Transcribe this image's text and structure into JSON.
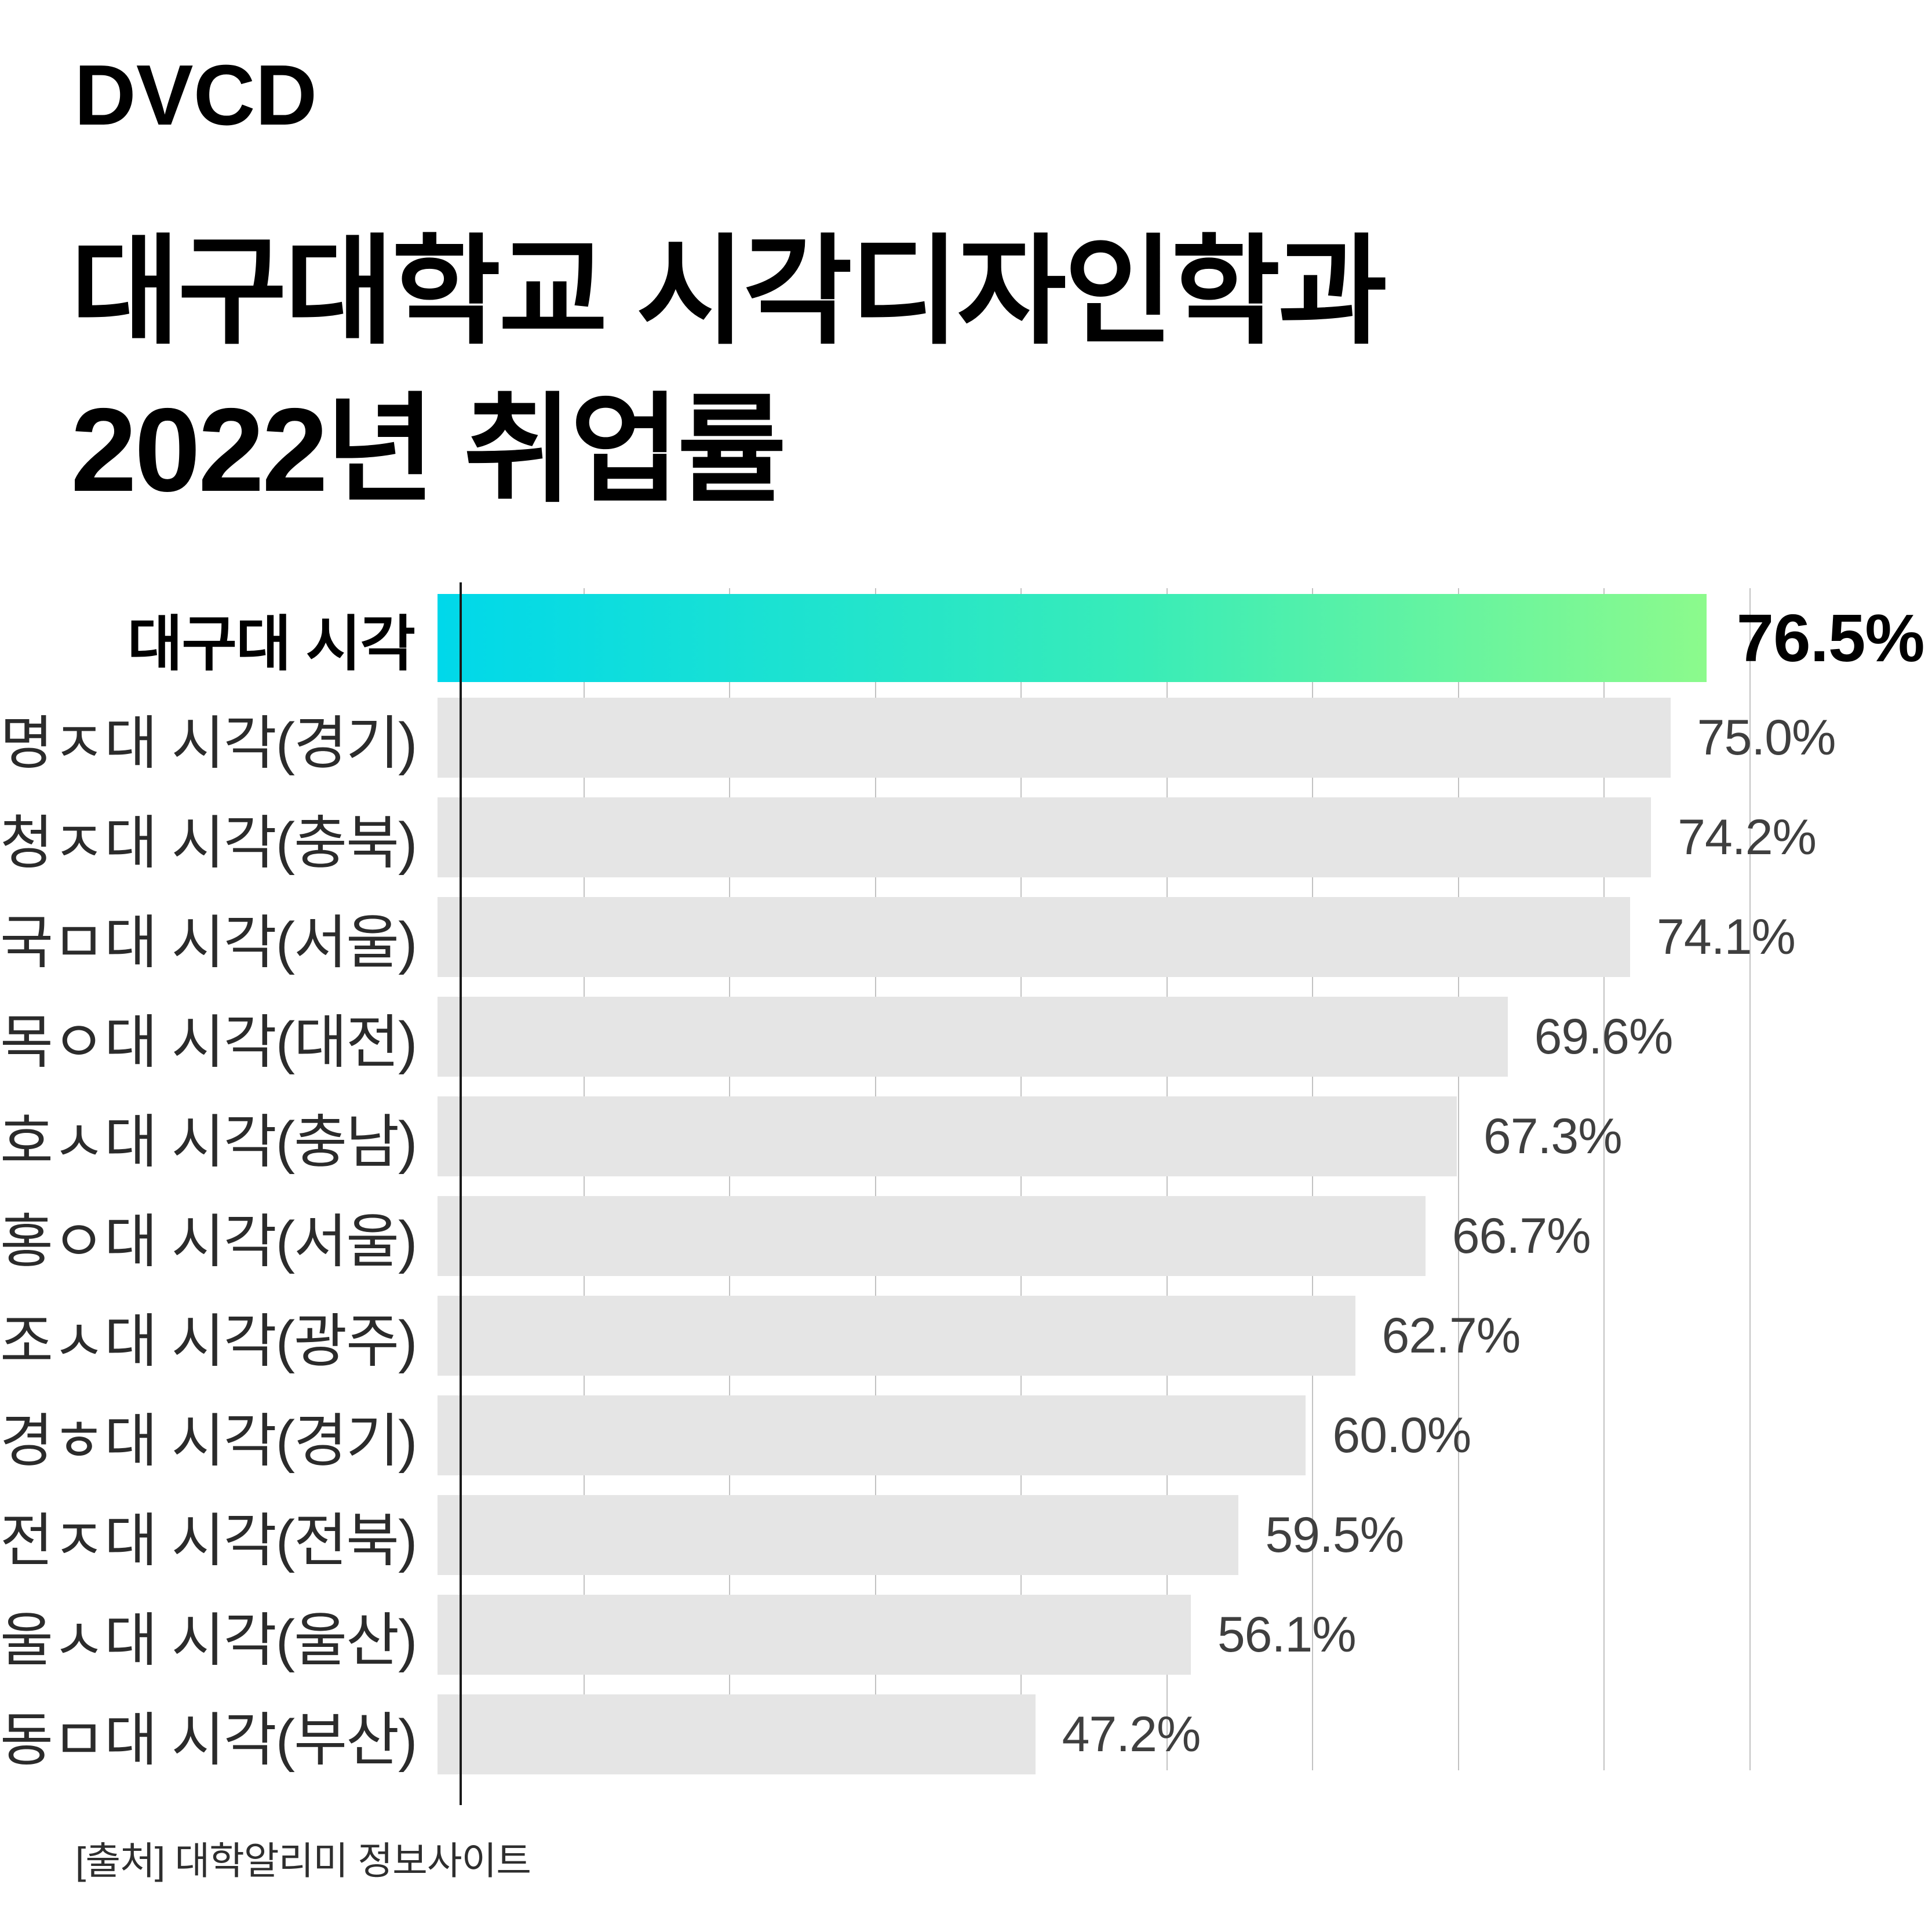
{
  "page": {
    "logo": "DVCD",
    "title_line1": "대구대학교 시각디자인학과",
    "title_line2": "2022년 취업률",
    "source": "[출처] 대학알리미 정보사이트"
  },
  "colors": {
    "highlight_gradient_start": "#00d8ea",
    "highlight_gradient_mid": "#38ecb8",
    "highlight_gradient_end": "#8cfa8c",
    "bar_default": "#e5e5e5",
    "gridline": "#c2c2c2",
    "axis": "#1a1a1a",
    "value_text": "#3f3f3f",
    "label_text": "#2b2b2b",
    "highlight_text": "#000000"
  },
  "chart_data": {
    "type": "bar",
    "orientation": "horizontal",
    "title": "대구대학교 시각디자인학과 2022년 취업률",
    "unit": "%",
    "xlabel": "",
    "ylabel": "",
    "grid": "vertical",
    "legend_position": "none",
    "highlighted_index": 0,
    "categories": [
      "대구대 시각",
      "명ㅈ대 시각(경기)",
      "청ㅈ대 시각(충북)",
      "국ㅁ대 시각(서울)",
      "목ㅇ대 시각(대전)",
      "호ㅅ대 시각(충남)",
      "홍ㅇ대 시각(서울)",
      "조ㅅ대 시각(광주)",
      "경ㅎ대 시각(경기)",
      "전ㅈ대 시각(전북)",
      "울ㅅ대 시각(울산)",
      "동ㅁ대 시각(부산)"
    ],
    "values": [
      76.5,
      75.0,
      74.2,
      74.1,
      69.6,
      67.3,
      66.7,
      62.7,
      60.0,
      59.5,
      56.1,
      47.2
    ],
    "value_labels": [
      "76.5%",
      "75.0%",
      "74.2%",
      "74.1%",
      "69.6%",
      "67.3%",
      "66.7%",
      "62.7%",
      "60.0%",
      "59.5%",
      "56.1%",
      "47.2%"
    ],
    "bar_length_pct_of_plot": [
      84.9,
      82.5,
      81.2,
      79.8,
      71.6,
      68.2,
      66.1,
      61.4,
      58.1,
      53.6,
      50.4,
      40.0
    ],
    "gridlines": {
      "count": 9,
      "first_pct": 8.8,
      "step_pct": 10.457
    },
    "source": "[출처] 대학알리미 정보사이트"
  }
}
